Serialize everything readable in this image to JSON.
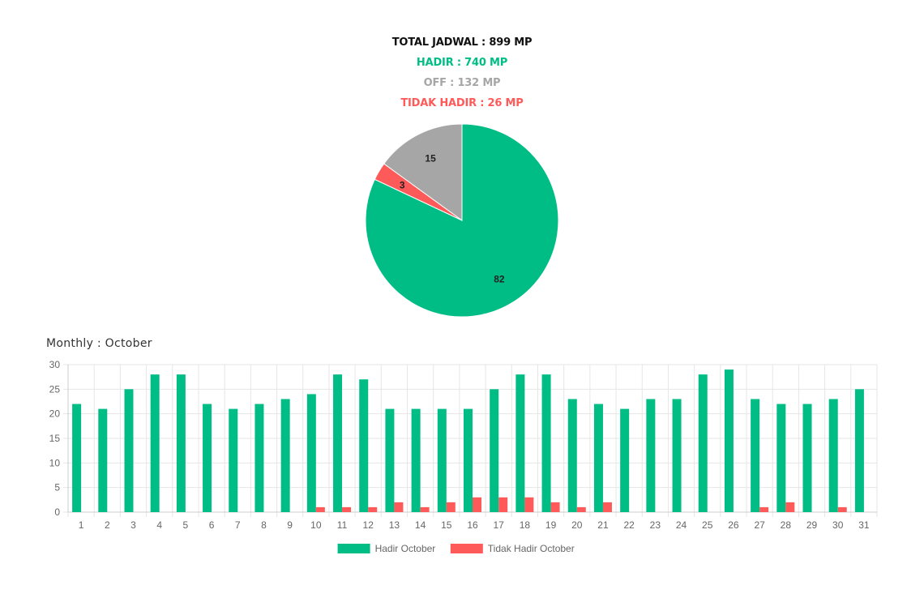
{
  "summary": {
    "total": "TOTAL JADWAL : 899 MP",
    "hadir": "HADIR : 740 MP",
    "off": "OFF : 132 MP",
    "tidak_hadir": "TIDAK HADIR : 26 MP"
  },
  "colors": {
    "hadir": "#00bd86",
    "off": "#a6a6a6",
    "tidak_hadir": "#ff5a5a"
  },
  "monthly_title": "Monthly : October",
  "chart_data": [
    {
      "type": "pie",
      "slices": [
        {
          "label": "Hadir",
          "value": 82,
          "color": "#00bd86"
        },
        {
          "label": "Tidak Hadir",
          "value": 3,
          "color": "#ff5a5a"
        },
        {
          "label": "Off",
          "value": 15,
          "color": "#a6a6a6"
        }
      ]
    },
    {
      "type": "bar",
      "categories": [
        "1",
        "2",
        "3",
        "4",
        "5",
        "6",
        "7",
        "8",
        "9",
        "10",
        "11",
        "12",
        "13",
        "14",
        "15",
        "16",
        "17",
        "18",
        "19",
        "20",
        "21",
        "22",
        "23",
        "24",
        "25",
        "26",
        "27",
        "28",
        "29",
        "30",
        "31"
      ],
      "series": [
        {
          "name": "Hadir October",
          "color": "#00bd86",
          "values": [
            22,
            21,
            25,
            28,
            28,
            22,
            21,
            22,
            23,
            24,
            28,
            27,
            21,
            21,
            21,
            21,
            25,
            28,
            28,
            23,
            22,
            21,
            23,
            23,
            28,
            29,
            23,
            22,
            22,
            23,
            25
          ]
        },
        {
          "name": "Tidak Hadir October",
          "color": "#ff5a5a",
          "values": [
            0,
            0,
            0,
            0,
            0,
            0,
            0,
            0,
            0,
            1,
            1,
            1,
            2,
            1,
            2,
            3,
            3,
            3,
            2,
            1,
            2,
            0,
            0,
            0,
            0,
            0,
            1,
            2,
            0,
            1,
            0
          ]
        }
      ],
      "ylim": [
        0,
        30
      ],
      "yticks": [
        0,
        5,
        10,
        15,
        20,
        25,
        30
      ],
      "grid": true,
      "legend": "bottom"
    }
  ]
}
